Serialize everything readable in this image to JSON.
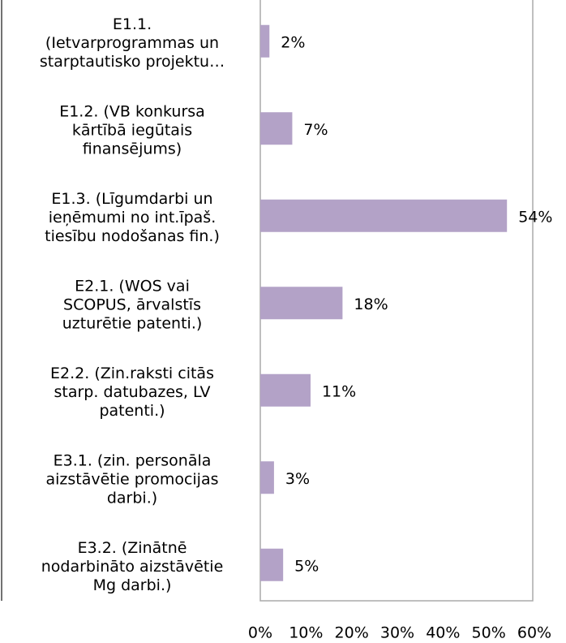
{
  "chart_data": {
    "type": "bar",
    "orientation": "horizontal",
    "categories": [
      "E1.1.\n(Ietvarprogrammas un\nstarptautisko projektu…",
      "E1.2. (VB konkursa\nkārtībā iegūtais\nfinansējums)",
      "E1.3. (Līgumdarbi un\nieņēmumi no int.īpaš.\ntiesību nodošanas fin.)",
      "E2.1. (WOS vai\nSCOPUS, ārvalstīs\nuzturētie patenti.)",
      "E2.2. (Zin.raksti citās\nstarp. datubazes, LV\npatenti.)",
      "E3.1. (zin. personāla\naizstāvētie promocijas\ndarbi.)",
      "E3.2. (Zinātnē\nnodarbināto aizstāvētie\nMg darbi.)"
    ],
    "values": [
      2,
      7,
      54,
      18,
      11,
      3,
      5
    ],
    "value_labels": [
      "2%",
      "7%",
      "54%",
      "18%",
      "11%",
      "3%",
      "5%"
    ],
    "color": "#b3a2c7",
    "xlim": [
      0,
      60
    ],
    "xticks": [
      {
        "value": 0,
        "label": "0%"
      },
      {
        "value": 10,
        "label": "10%"
      },
      {
        "value": 20,
        "label": "20%"
      },
      {
        "value": 30,
        "label": "30%"
      },
      {
        "value": 40,
        "label": "40%"
      },
      {
        "value": 50,
        "label": "50%"
      },
      {
        "value": 60,
        "label": "60%"
      }
    ],
    "grid": false
  }
}
